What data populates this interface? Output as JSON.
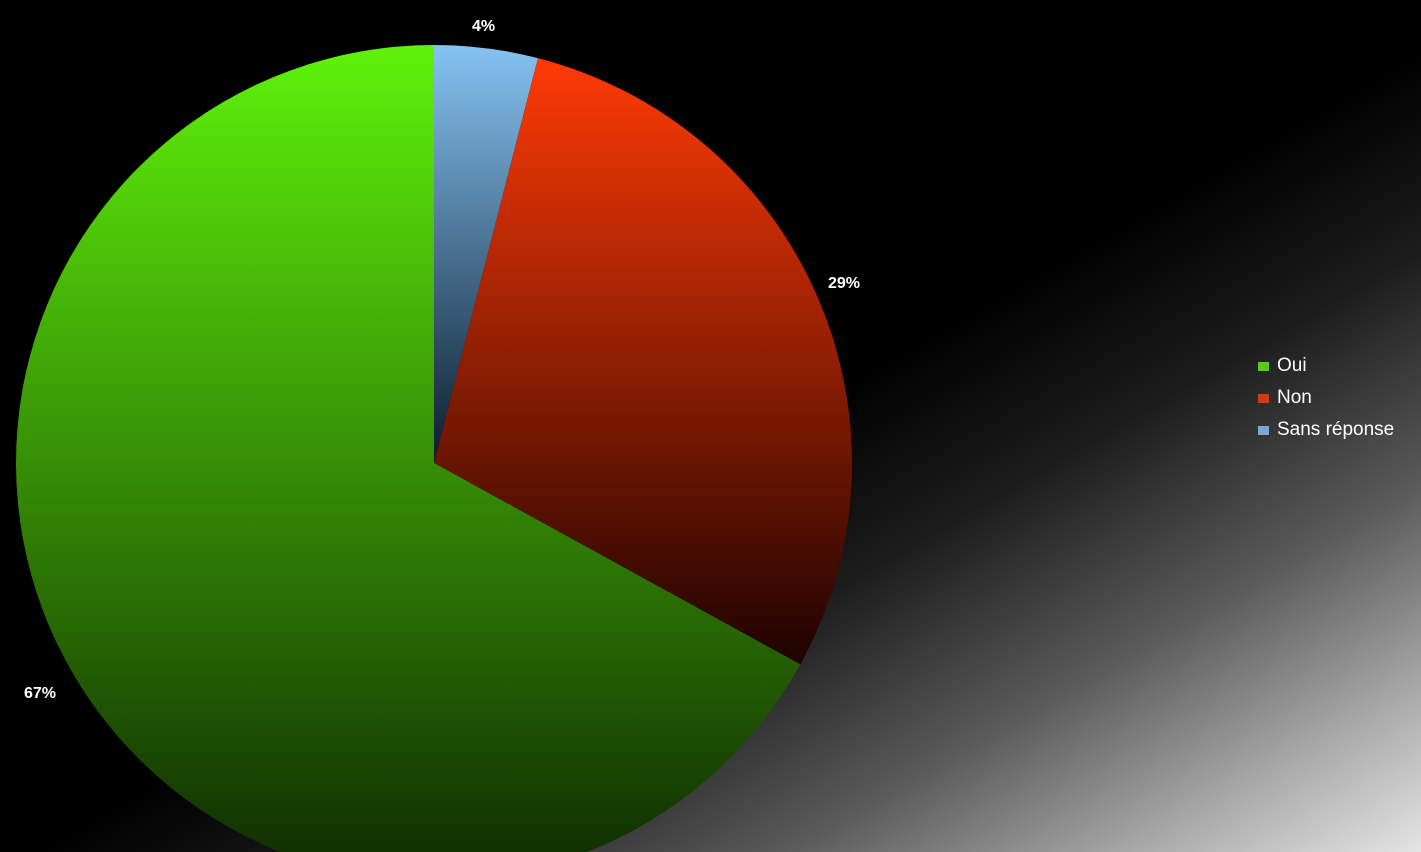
{
  "chart_data": {
    "type": "pie",
    "slices": [
      {
        "name": "Oui",
        "value": 67,
        "label": "67%",
        "color": "#5ff20a",
        "color_dark": "#0e2a02"
      },
      {
        "name": "Non",
        "value": 29,
        "label": "29%",
        "color": "#ff3a06",
        "color_dark": "#1e0200"
      },
      {
        "name": "Sans réponse",
        "value": 4,
        "label": "4%",
        "color": "#86c3f3",
        "color_dark": "#0c1c2c"
      }
    ],
    "legend_position": "right",
    "start_angle": "12 o'clock",
    "direction": "clockwise, Sans réponse first"
  }
}
